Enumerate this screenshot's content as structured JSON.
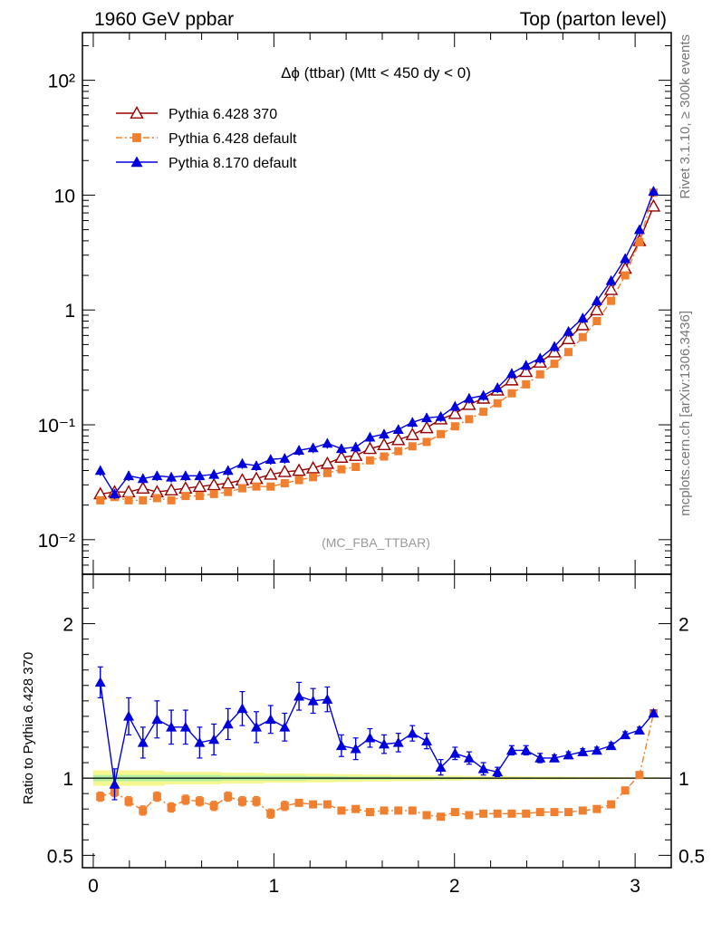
{
  "header": {
    "left": "1960 GeV ppbar",
    "right": "Top (parton level)"
  },
  "side_labels": {
    "rivet": "Rivet 3.1.10, ≥ 300k events",
    "mcplots": "mcplots.cern.ch [arXiv:1306.3436]"
  },
  "colors": {
    "series_370": "#990000",
    "series_6428_default": "#f08030",
    "series_8170_default": "#0000dd",
    "band_green": "#aef0a0",
    "band_yellow": "#f6f690"
  },
  "chart_data": [
    {
      "type": "line",
      "title": "Δϕ (ttbar) (Mtt < 450 dy < 0)",
      "watermark": "(MC_FBA_TTBAR)",
      "yscale": "log",
      "ylim": [
        0.005,
        260
      ],
      "xlim": [
        -0.06,
        3.2
      ],
      "y_tick_labels": [
        "10⁻²",
        "10⁻¹",
        "1",
        "10",
        "10²"
      ],
      "y_tick_values": [
        0.01,
        0.1,
        1,
        10,
        100
      ],
      "legend": {
        "placement": "top-left"
      },
      "x": [
        0.039,
        0.118,
        0.196,
        0.275,
        0.353,
        0.432,
        0.511,
        0.589,
        0.668,
        0.746,
        0.825,
        0.903,
        0.982,
        1.06,
        1.139,
        1.217,
        1.296,
        1.374,
        1.453,
        1.532,
        1.61,
        1.689,
        1.767,
        1.846,
        1.924,
        2.003,
        2.081,
        2.16,
        2.238,
        2.317,
        2.396,
        2.474,
        2.553,
        2.631,
        2.71,
        2.788,
        2.867,
        2.945,
        3.024,
        3.102
      ],
      "series": [
        {
          "name": "Pythia 6.428 370",
          "marker": "open-triangle",
          "color": "#990000",
          "values": [
            0.025,
            0.026,
            0.026,
            0.028,
            0.026,
            0.027,
            0.028,
            0.029,
            0.03,
            0.031,
            0.033,
            0.034,
            0.037,
            0.039,
            0.04,
            0.042,
            0.046,
            0.052,
            0.054,
            0.062,
            0.067,
            0.074,
            0.082,
            0.094,
            0.112,
            0.125,
            0.15,
            0.17,
            0.2,
            0.245,
            0.29,
            0.35,
            0.43,
            0.56,
            0.74,
            1.0,
            1.5,
            2.3,
            4.0,
            8.0
          ]
        },
        {
          "name": "Pythia 6.428 default",
          "marker": "filled-square",
          "color": "#f08030",
          "line": "dash-dot",
          "values": [
            0.022,
            0.0235,
            0.022,
            0.022,
            0.023,
            0.022,
            0.024,
            0.024,
            0.025,
            0.026,
            0.028,
            0.029,
            0.029,
            0.031,
            0.033,
            0.035,
            0.038,
            0.041,
            0.043,
            0.049,
            0.053,
            0.059,
            0.065,
            0.071,
            0.083,
            0.097,
            0.112,
            0.13,
            0.154,
            0.188,
            0.225,
            0.275,
            0.34,
            0.43,
            0.58,
            0.8,
            1.2,
            2.0,
            3.9,
            10.5
          ]
        },
        {
          "name": "Pythia 8.170 default",
          "marker": "filled-triangle",
          "color": "#0000dd",
          "values": [
            0.04,
            0.025,
            0.036,
            0.034,
            0.036,
            0.035,
            0.036,
            0.036,
            0.037,
            0.04,
            0.046,
            0.044,
            0.05,
            0.051,
            0.06,
            0.063,
            0.069,
            0.062,
            0.064,
            0.078,
            0.083,
            0.091,
            0.105,
            0.115,
            0.118,
            0.145,
            0.17,
            0.18,
            0.21,
            0.28,
            0.33,
            0.38,
            0.48,
            0.65,
            0.85,
            1.2,
            1.8,
            2.8,
            5.0,
            10.8
          ]
        }
      ]
    },
    {
      "type": "line",
      "ylabel": "Ratio to Pythia 6.428 370",
      "ylim": [
        0.42,
        2.32
      ],
      "xlim": [
        -0.06,
        3.2
      ],
      "x_tick_labels": [
        "0",
        "1",
        "2",
        "3"
      ],
      "x_tick_values": [
        0,
        1,
        2,
        3
      ],
      "y_tick_labels": [
        "0.5",
        "1",
        "2"
      ],
      "y_tick_values": [
        0.5,
        1,
        2
      ],
      "reference_line": 1,
      "reference_band": {
        "green_halfwidth": [
          0.02,
          0.02,
          0.02,
          0.02,
          0.02,
          0.02,
          0.02,
          0.02,
          0.02,
          0.015,
          0.015,
          0.015,
          0.015,
          0.015,
          0.015,
          0.012,
          0.012,
          0.012,
          0.01,
          0.01,
          0.01,
          0.008,
          0.008,
          0.008,
          0.007,
          0.007,
          0.006,
          0.006,
          0.005,
          0.005,
          0.005,
          0.004,
          0.004,
          0.004,
          0.003,
          0.003,
          0.003,
          0.002,
          0.002,
          0.002
        ],
        "yellow_halfwidth": [
          0.05,
          0.05,
          0.05,
          0.05,
          0.05,
          0.04,
          0.04,
          0.04,
          0.04,
          0.035,
          0.035,
          0.035,
          0.03,
          0.03,
          0.03,
          0.028,
          0.028,
          0.025,
          0.025,
          0.022,
          0.022,
          0.02,
          0.02,
          0.018,
          0.016,
          0.016,
          0.014,
          0.014,
          0.012,
          0.012,
          0.011,
          0.01,
          0.01,
          0.009,
          0.008,
          0.008,
          0.007,
          0.006,
          0.005,
          0.005
        ]
      },
      "series": [
        {
          "name": "Pythia 6.428 default",
          "color": "#f08030",
          "values": [
            0.88,
            0.91,
            0.85,
            0.79,
            0.88,
            0.81,
            0.86,
            0.85,
            0.82,
            0.88,
            0.85,
            0.85,
            0.77,
            0.82,
            0.84,
            0.83,
            0.83,
            0.79,
            0.8,
            0.78,
            0.79,
            0.79,
            0.79,
            0.76,
            0.75,
            0.78,
            0.76,
            0.77,
            0.77,
            0.77,
            0.77,
            0.78,
            0.78,
            0.78,
            0.79,
            0.8,
            0.83,
            0.92,
            1.02,
            1.42
          ],
          "errors": [
            0.03,
            0.03,
            0.03,
            0.03,
            0.03,
            0.03,
            0.03,
            0.03,
            0.03,
            0.03,
            0.03,
            0.03,
            0.03,
            0.03,
            0.02,
            0.02,
            0.02,
            0.02,
            0.02,
            0.02,
            0.02,
            0.02,
            0.02,
            0.02,
            0.015,
            0.015,
            0.015,
            0.015,
            0.01,
            0.01,
            0.01,
            0.01,
            0.01,
            0.01,
            0.01,
            0.01,
            0.01,
            0.01,
            0.01,
            0.01
          ]
        },
        {
          "name": "Pythia 8.170 default",
          "color": "#0000dd",
          "values": [
            1.62,
            0.96,
            1.4,
            1.23,
            1.38,
            1.33,
            1.33,
            1.23,
            1.25,
            1.35,
            1.45,
            1.33,
            1.38,
            1.33,
            1.53,
            1.5,
            1.51,
            1.21,
            1.19,
            1.26,
            1.22,
            1.23,
            1.29,
            1.24,
            1.07,
            1.16,
            1.13,
            1.06,
            1.04,
            1.18,
            1.18,
            1.13,
            1.13,
            1.15,
            1.17,
            1.18,
            1.21,
            1.28,
            1.31,
            1.42
          ],
          "errors": [
            0.1,
            0.1,
            0.12,
            0.1,
            0.12,
            0.11,
            0.11,
            0.1,
            0.1,
            0.1,
            0.11,
            0.1,
            0.09,
            0.09,
            0.09,
            0.08,
            0.08,
            0.07,
            0.07,
            0.06,
            0.06,
            0.06,
            0.05,
            0.05,
            0.05,
            0.04,
            0.04,
            0.04,
            0.03,
            0.03,
            0.03,
            0.03,
            0.02,
            0.02,
            0.02,
            0.02,
            0.02,
            0.02,
            0.02,
            0.02
          ]
        }
      ]
    }
  ]
}
